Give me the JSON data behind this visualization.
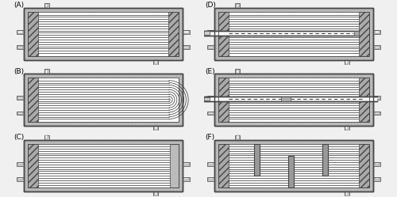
{
  "figsize": [
    5.0,
    2.49
  ],
  "dpi": 100,
  "bg_color": "#f0f0f0",
  "panel_labels": [
    "(A)",
    "(B)",
    "(C)",
    "(D)",
    "(E)",
    "(F)"
  ],
  "n_tubes": 18,
  "c_border": "#444444",
  "c_outer_wall": "#888888",
  "c_tubesheet": "#999999",
  "c_fiber": "#aaaaaa",
  "c_white": "#ffffff",
  "c_light": "#cccccc",
  "c_mid": "#aaaaaa",
  "c_dark": "#777777",
  "c_dotted_bg": "#bbbbbb"
}
